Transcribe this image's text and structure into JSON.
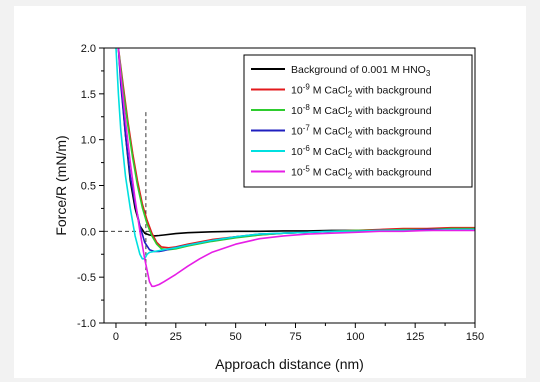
{
  "chart_data": {
    "type": "line",
    "title": "",
    "xlabel": "Approach distance (nm)",
    "ylabel": "Force/R (mN/m)",
    "xlim": [
      -5,
      150
    ],
    "ylim": [
      -1.0,
      2.0
    ],
    "xticks": [
      "0",
      "25",
      "50",
      "75",
      "100",
      "125",
      "150"
    ],
    "xtick_values": [
      0,
      25,
      50,
      75,
      100,
      125,
      150
    ],
    "yticks": [
      "2.0",
      "1.5",
      "1.0",
      "0.5",
      "0.0",
      "-0.5",
      "-1.0"
    ],
    "ytick_values": [
      2.0,
      1.5,
      1.0,
      0.5,
      0.0,
      -0.5,
      -1.0
    ],
    "grid": false,
    "legend_position": "top-right",
    "reference_lines": [
      {
        "orientation": "horizontal",
        "value": 0.0,
        "style": "dashed"
      },
      {
        "orientation": "vertical",
        "value": 12.5,
        "style": "dashed"
      }
    ],
    "series": [
      {
        "name": "Background of 0.001 M HNO3",
        "legend": {
          "pre": "Background of 0.001 M HNO",
          "sub": "3",
          "post": ""
        },
        "color": "#000000",
        "x": [
          1,
          2,
          4,
          6,
          8,
          10,
          12,
          14,
          16,
          18,
          20,
          25,
          30,
          40,
          50,
          60,
          70,
          80,
          90,
          100,
          110,
          120,
          130,
          140,
          150
        ],
        "y": [
          2.0,
          1.65,
          1.05,
          0.55,
          0.25,
          0.06,
          -0.02,
          -0.04,
          -0.05,
          -0.045,
          -0.04,
          -0.025,
          -0.015,
          -0.005,
          0.0,
          0.0,
          0.005,
          0.005,
          0.01,
          0.01,
          0.015,
          0.015,
          0.02,
          0.02,
          0.02
        ]
      },
      {
        "name": "10-9 M CaCl2 with background",
        "legend": {
          "pre": "10",
          "sup": "-9",
          "mid": " M CaCl",
          "sub": "2",
          "post": " with background"
        },
        "color": "#e31a1c",
        "x": [
          1,
          3,
          5,
          7,
          9,
          11,
          13,
          15,
          17,
          19,
          22,
          25,
          30,
          40,
          50,
          60,
          70,
          80,
          90,
          100,
          110,
          120,
          130,
          140,
          150
        ],
        "y": [
          2.0,
          1.6,
          1.2,
          0.85,
          0.55,
          0.3,
          0.12,
          -0.02,
          -0.12,
          -0.17,
          -0.18,
          -0.17,
          -0.14,
          -0.09,
          -0.06,
          -0.04,
          -0.02,
          -0.01,
          0.0,
          0.01,
          0.02,
          0.03,
          0.03,
          0.04,
          0.04
        ]
      },
      {
        "name": "10-8 M CaCl2 with background",
        "legend": {
          "pre": "10",
          "sup": "-8",
          "mid": " M CaCl",
          "sub": "2",
          "post": " with background"
        },
        "color": "#2ecc2e",
        "x": [
          1,
          3,
          5,
          7,
          9,
          11,
          13,
          15,
          17,
          19,
          22,
          25,
          30,
          40,
          50,
          60,
          70,
          80,
          90,
          100,
          110,
          120,
          130,
          140,
          150
        ],
        "y": [
          2.0,
          1.55,
          1.15,
          0.8,
          0.5,
          0.26,
          0.08,
          -0.05,
          -0.14,
          -0.19,
          -0.2,
          -0.19,
          -0.16,
          -0.11,
          -0.07,
          -0.04,
          -0.02,
          -0.01,
          0.0,
          0.01,
          0.01,
          0.02,
          0.02,
          0.03,
          0.03
        ]
      },
      {
        "name": "10-7 M CaCl2 with background",
        "legend": {
          "pre": "10",
          "sup": "-7",
          "mid": " M CaCl",
          "sub": "2",
          "post": " with background"
        },
        "color": "#1f1fbf",
        "x": [
          1,
          2,
          4,
          6,
          8,
          10,
          12,
          14,
          16,
          18,
          20,
          23,
          26,
          30,
          40,
          50,
          60,
          70,
          80,
          90,
          100,
          110,
          120,
          130,
          140,
          150
        ],
        "y": [
          2.0,
          1.6,
          1.05,
          0.6,
          0.3,
          0.06,
          -0.12,
          -0.2,
          -0.22,
          -0.22,
          -0.21,
          -0.19,
          -0.17,
          -0.15,
          -0.1,
          -0.06,
          -0.03,
          -0.02,
          -0.01,
          0.0,
          0.0,
          0.01,
          0.01,
          0.02,
          0.02,
          0.02
        ]
      },
      {
        "name": "10-6 M CaCl2 with background",
        "legend": {
          "pre": "10",
          "sup": "-6",
          "mid": " M CaCl",
          "sub": "2",
          "post": " with background"
        },
        "color": "#00e0e0",
        "x": [
          0,
          1,
          2,
          4,
          6,
          8,
          10,
          11,
          12,
          13,
          14,
          16,
          18,
          20,
          25,
          30,
          40,
          50,
          60,
          70,
          80,
          90,
          100,
          110,
          120,
          130,
          140,
          150
        ],
        "y": [
          2.0,
          1.5,
          1.1,
          0.6,
          0.25,
          -0.05,
          -0.25,
          -0.3,
          -0.3,
          -0.25,
          -0.23,
          -0.22,
          -0.21,
          -0.2,
          -0.18,
          -0.15,
          -0.1,
          -0.06,
          -0.03,
          -0.02,
          -0.01,
          0.0,
          0.0,
          0.01,
          0.01,
          0.01,
          0.02,
          0.02
        ]
      },
      {
        "name": "10-5 M CaCl2 with background",
        "legend": {
          "pre": "10",
          "sup": "-5",
          "mid": " M CaCl",
          "sub": "2",
          "post": " with background"
        },
        "color": "#e61ee6",
        "x": [
          1,
          2,
          4,
          6,
          8,
          10,
          12,
          14,
          15,
          16,
          18,
          20,
          25,
          30,
          35,
          40,
          50,
          60,
          70,
          80,
          90,
          100,
          110,
          120,
          130,
          140,
          150
        ],
        "y": [
          2.0,
          1.7,
          1.2,
          0.75,
          0.35,
          0.0,
          -0.3,
          -0.55,
          -0.6,
          -0.6,
          -0.58,
          -0.55,
          -0.47,
          -0.38,
          -0.3,
          -0.23,
          -0.14,
          -0.08,
          -0.05,
          -0.03,
          -0.02,
          -0.01,
          0.0,
          0.0,
          0.01,
          0.01,
          0.01
        ]
      }
    ]
  }
}
